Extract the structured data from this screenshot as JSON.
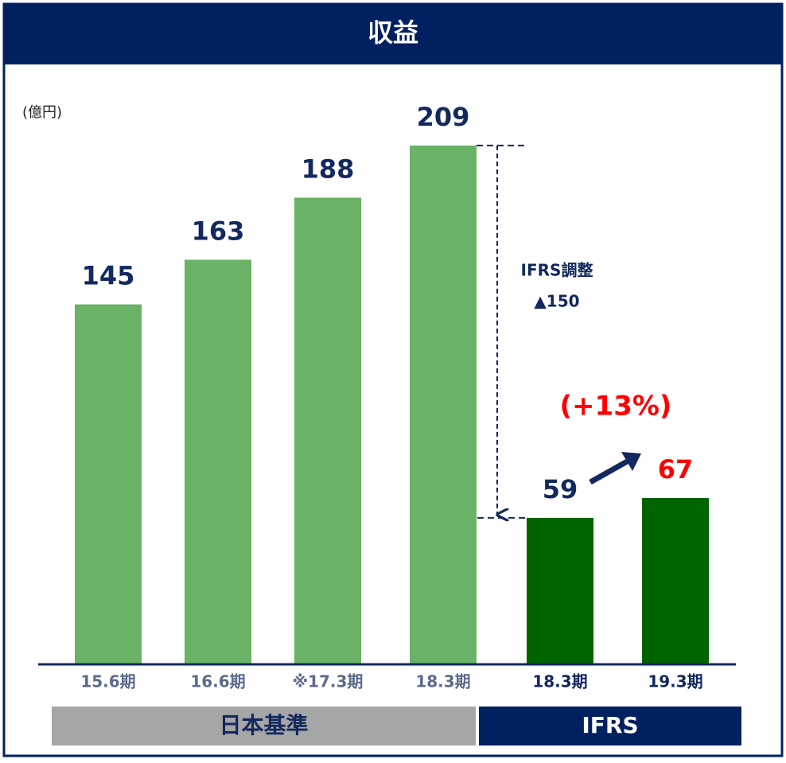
{
  "chart_data": {
    "type": "bar",
    "title": "収益",
    "unit_label": "(億円)",
    "categories": [
      "15.6期",
      "16.6期",
      "※17.3期",
      "18.3期",
      "18.3期",
      "19.3期"
    ],
    "values": [
      145,
      163,
      188,
      209,
      59,
      67
    ],
    "colors": [
      "#6ab265",
      "#6ab265",
      "#6ab265",
      "#6ab265",
      "#006400",
      "#006400"
    ],
    "value_label_colors": [
      "#12285e",
      "#12285e",
      "#12285e",
      "#12285e",
      "#12285e",
      "#ff0000"
    ],
    "category_label_colors": [
      "#5b6b8c",
      "#5b6b8c",
      "#5b6b8c",
      "#5b6b8c",
      "#12285e",
      "#12285e"
    ],
    "ylim": [
      0,
      250
    ],
    "groups": [
      {
        "label": "日本基準",
        "color": "#a6a6a6",
        "text_color": "#12285e"
      },
      {
        "label": "IFRS",
        "color": "#002060",
        "text_color": "#ffffff"
      }
    ],
    "annotations": {
      "adjustment": "IFRS調整",
      "adjustment_value": "▲150",
      "growth": "(+13%)"
    }
  }
}
